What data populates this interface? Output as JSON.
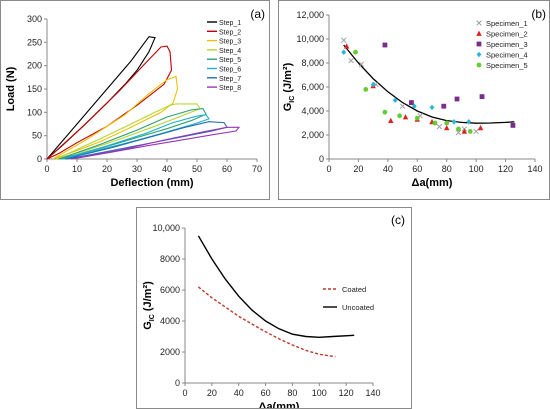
{
  "chart_data": [
    {
      "type": "line",
      "panel_label": "(a)",
      "xlabel": "Deflection (mm)",
      "ylabel": "Load (N)",
      "xlim": [
        0,
        70
      ],
      "ylim": [
        0,
        300
      ],
      "xticks": [
        "0",
        "10",
        "20",
        "30",
        "40",
        "50",
        "60",
        "70"
      ],
      "yticks": [
        "0",
        "50",
        "100",
        "150",
        "200",
        "250",
        "300"
      ],
      "grid": false,
      "legend_position": "top-right",
      "series": [
        {
          "name": "Step_1",
          "color": "#000000",
          "points": [
            [
              0,
              0
            ],
            [
              10,
              75
            ],
            [
              20,
              150
            ],
            [
              28,
              210
            ],
            [
              34,
              262
            ],
            [
              36,
              260
            ],
            [
              34,
              230
            ],
            [
              30,
              190
            ],
            [
              26,
              160
            ],
            [
              20,
              120
            ],
            [
              12,
              70
            ],
            [
              5,
              28
            ],
            [
              0,
              0
            ]
          ]
        },
        {
          "name": "Step_2",
          "color": "#c00000",
          "points": [
            [
              0,
              0
            ],
            [
              12,
              70
            ],
            [
              24,
              145
            ],
            [
              32,
              200
            ],
            [
              38,
              240
            ],
            [
              40,
              242
            ],
            [
              41,
              230
            ],
            [
              41.5,
              190
            ],
            [
              39,
              160
            ],
            [
              30,
              115
            ],
            [
              20,
              70
            ],
            [
              10,
              35
            ],
            [
              4,
              12
            ],
            [
              0,
              0
            ]
          ]
        },
        {
          "name": "Step_3",
          "color": "#f0c000",
          "points": [
            [
              2,
              0
            ],
            [
              14,
              45
            ],
            [
              26,
              95
            ],
            [
              34,
              140
            ],
            [
              40,
              170
            ],
            [
              43,
              177
            ],
            [
              43.5,
              150
            ],
            [
              42,
              120
            ],
            [
              38,
              100
            ],
            [
              28,
              68
            ],
            [
              18,
              38
            ],
            [
              10,
              18
            ],
            [
              2,
              0
            ]
          ]
        },
        {
          "name": "Step_4",
          "color": "#b5d630",
          "points": [
            [
              3,
              0
            ],
            [
              16,
              38
            ],
            [
              28,
              75
            ],
            [
              36,
              100
            ],
            [
              41,
              115
            ],
            [
              43,
              118
            ],
            [
              50,
              118
            ],
            [
              51,
              108
            ],
            [
              44,
              90
            ],
            [
              35,
              68
            ],
            [
              24,
              42
            ],
            [
              13,
              18
            ],
            [
              3,
              0
            ]
          ]
        },
        {
          "name": "Step_5",
          "color": "#2ca070",
          "points": [
            [
              4,
              0
            ],
            [
              18,
              32
            ],
            [
              30,
              62
            ],
            [
              40,
              90
            ],
            [
              48,
              105
            ],
            [
              52,
              108
            ],
            [
              53,
              96
            ],
            [
              48,
              82
            ],
            [
              40,
              65
            ],
            [
              30,
              46
            ],
            [
              19,
              25
            ],
            [
              9,
              8
            ],
            [
              4,
              0
            ]
          ]
        },
        {
          "name": "Step_6",
          "color": "#20b0d0",
          "points": [
            [
              5,
              0
            ],
            [
              20,
              28
            ],
            [
              33,
              55
            ],
            [
              42,
              78
            ],
            [
              50,
              92
            ],
            [
              53,
              95
            ],
            [
              54,
              86
            ],
            [
              49,
              75
            ],
            [
              40,
              58
            ],
            [
              30,
              40
            ],
            [
              19,
              22
            ],
            [
              10,
              8
            ],
            [
              5,
              0
            ]
          ]
        },
        {
          "name": "Step_7",
          "color": "#1f6fb4",
          "points": [
            [
              6,
              0
            ],
            [
              22,
              25
            ],
            [
              36,
              50
            ],
            [
              46,
              68
            ],
            [
              54,
              80
            ],
            [
              59,
              78
            ],
            [
              60,
              68
            ],
            [
              55,
              60
            ],
            [
              44,
              46
            ],
            [
              32,
              31
            ],
            [
              20,
              16
            ],
            [
              11,
              5
            ],
            [
              6,
              0
            ]
          ]
        },
        {
          "name": "Step_8",
          "color": "#9a35b8",
          "points": [
            [
              8,
              0
            ],
            [
              25,
              20
            ],
            [
              40,
              42
            ],
            [
              52,
              58
            ],
            [
              60,
              68
            ],
            [
              64,
              68
            ],
            [
              63,
              60
            ],
            [
              56,
              53
            ],
            [
              46,
              42
            ],
            [
              33,
              28
            ],
            [
              21,
              14
            ],
            [
              12,
              4
            ],
            [
              8,
              0
            ]
          ]
        }
      ]
    },
    {
      "type": "scatter",
      "panel_label": "(b)",
      "xlabel": "Δa(mm)",
      "ylabel": "G",
      "ylabel_sub": "IC",
      "ylabel_unit": " (J/m²)",
      "xlim": [
        0,
        140
      ],
      "ylim": [
        0,
        12000
      ],
      "xticks": [
        "0",
        "20",
        "40",
        "60",
        "80",
        "100",
        "120",
        "140"
      ],
      "yticks": [
        "0",
        "2,000",
        "4,000",
        "6,000",
        "8,000",
        "10,000",
        "12,000"
      ],
      "grid": false,
      "legend_position": "top-right",
      "series": [
        {
          "name": "Specimen_1",
          "color": "#a0a0a0",
          "marker": "x",
          "points": [
            [
              10,
              9900
            ],
            [
              15,
              8200
            ],
            [
              22,
              7900
            ],
            [
              32,
              6200
            ],
            [
              50,
              4400
            ],
            [
              62,
              3600
            ],
            [
              75,
              2700
            ],
            [
              88,
              2200
            ],
            [
              92,
              2500
            ],
            [
              100,
              2300
            ]
          ]
        },
        {
          "name": "Specimen_2",
          "color": "#e02020",
          "marker": "triangle",
          "points": [
            [
              12,
              9400
            ],
            [
              30,
              6100
            ],
            [
              42,
              3200
            ],
            [
              52,
              3500
            ],
            [
              60,
              3300
            ],
            [
              70,
              3100
            ],
            [
              80,
              2600
            ],
            [
              92,
              2300
            ],
            [
              103,
              2600
            ]
          ]
        },
        {
          "name": "Specimen_3",
          "color": "#7b2d8e",
          "marker": "square",
          "points": [
            [
              38,
              9500
            ],
            [
              56,
              4700
            ],
            [
              78,
              4400
            ],
            [
              87,
              5000
            ],
            [
              104,
              5200
            ],
            [
              125,
              2800
            ]
          ]
        },
        {
          "name": "Specimen_4",
          "color": "#2cb5d8",
          "marker": "diamond",
          "points": [
            [
              10,
              8900
            ],
            [
              30,
              6200
            ],
            [
              45,
              4900
            ],
            [
              58,
              4400
            ],
            [
              70,
              4300
            ],
            [
              85,
              3100
            ],
            [
              95,
              3100
            ]
          ]
        },
        {
          "name": "Specimen_5",
          "color": "#66cc33",
          "marker": "circle",
          "points": [
            [
              18,
              8900
            ],
            [
              25,
              5800
            ],
            [
              38,
              3900
            ],
            [
              48,
              3600
            ],
            [
              60,
              3400
            ],
            [
              72,
              3000
            ],
            [
              80,
              3000
            ],
            [
              88,
              2500
            ],
            [
              96,
              2300
            ]
          ]
        }
      ],
      "trend": {
        "color": "#000000",
        "points": [
          [
            10,
            9500
          ],
          [
            20,
            8000
          ],
          [
            30,
            6700
          ],
          [
            40,
            5600
          ],
          [
            50,
            4700
          ],
          [
            60,
            4000
          ],
          [
            70,
            3500
          ],
          [
            80,
            3200
          ],
          [
            90,
            3050
          ],
          [
            100,
            2980
          ],
          [
            110,
            3000
          ],
          [
            120,
            3050
          ],
          [
            126,
            3100
          ]
        ]
      }
    },
    {
      "type": "line",
      "panel_label": "(c)",
      "xlabel": "Δa(mm)",
      "ylabel": "G",
      "ylabel_sub": "IC",
      "ylabel_unit": " (J/m²)",
      "xlim": [
        0,
        140
      ],
      "ylim": [
        0,
        10000
      ],
      "xticks": [
        "0",
        "20",
        "40",
        "60",
        "80",
        "100",
        "120",
        "140"
      ],
      "yticks": [
        "0",
        "2000",
        "4000",
        "6000",
        "8000",
        "10,000"
      ],
      "grid": false,
      "legend_position": "right",
      "series": [
        {
          "name": "Coated",
          "color": "#c0392b",
          "dash": true,
          "points": [
            [
              10,
              6200
            ],
            [
              20,
              5500
            ],
            [
              30,
              4900
            ],
            [
              40,
              4300
            ],
            [
              50,
              3800
            ],
            [
              60,
              3300
            ],
            [
              70,
              2850
            ],
            [
              80,
              2450
            ],
            [
              90,
              2100
            ],
            [
              100,
              1850
            ],
            [
              112,
              1700
            ]
          ]
        },
        {
          "name": "Uncoated",
          "color": "#000000",
          "dash": false,
          "points": [
            [
              10,
              9500
            ],
            [
              20,
              8000
            ],
            [
              30,
              6700
            ],
            [
              40,
              5600
            ],
            [
              50,
              4700
            ],
            [
              60,
              4000
            ],
            [
              70,
              3500
            ],
            [
              80,
              3150
            ],
            [
              90,
              3000
            ],
            [
              100,
              2950
            ],
            [
              110,
              3000
            ],
            [
              126,
              3080
            ]
          ]
        }
      ]
    }
  ]
}
